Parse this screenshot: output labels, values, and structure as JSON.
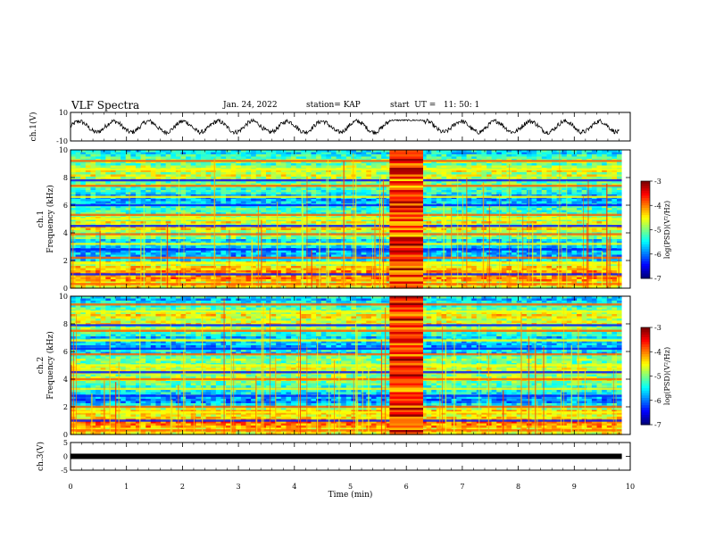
{
  "header": {
    "title": "VLF Spectra",
    "date": "Jan. 24, 2022",
    "station": "station= KAP",
    "start": "start  UT =   11: 50: 1"
  },
  "chart_data": [
    {
      "type": "line",
      "panel": "ch1-waveform",
      "ylabel": "ch.1(V)",
      "ylim": [
        -10,
        10
      ],
      "yticks": [
        "10",
        "-10"
      ],
      "xlim": [
        0,
        10
      ],
      "description_series": [
        {
          "name": "",
          "style": "black oscillating trace, approx. ±5 V, dense between 5.7 and 6.3 min"
        }
      ]
    },
    {
      "type": "heatmap",
      "panel": "ch1-spectrogram",
      "ylabel": "ch.1\nFrequency (kHz)",
      "ylim": [
        0,
        10
      ],
      "yticks": [
        "0",
        "2",
        "4",
        "6",
        "8",
        "10"
      ],
      "xlim": [
        0,
        10
      ],
      "colorbar": {
        "label": "log(PSD)(V²/Hz)",
        "range": [
          -7,
          -3
        ],
        "ticks": [
          "-3",
          "-4",
          "-5",
          "-6",
          "-7"
        ]
      },
      "bands_khz": [
        0.3,
        1.0,
        1.8,
        2.2,
        2.8,
        3.2,
        3.9,
        4.5,
        5.0,
        5.3,
        6.0,
        6.6,
        7.4,
        7.8,
        8.6,
        9.2
      ],
      "burst_min": [
        5.7,
        6.3
      ]
    },
    {
      "type": "heatmap",
      "panel": "ch2-spectrogram",
      "ylabel": "ch.2\nFrequency (kHz)",
      "ylim": [
        0,
        10
      ],
      "yticks": [
        "0",
        "2",
        "4",
        "6",
        "8",
        "10"
      ],
      "xlim": [
        0,
        10
      ],
      "colorbar": {
        "label": "log(PSD)(V²/Hz)",
        "range": [
          -7,
          -3
        ],
        "ticks": [
          "-3",
          "-4",
          "-5",
          "-6",
          "-7"
        ]
      },
      "bands_khz": [
        0.3,
        1.0,
        1.6,
        2.0,
        2.8,
        3.3,
        4.0,
        4.5,
        5.0,
        5.8,
        6.2,
        6.8,
        7.5,
        7.9,
        8.9,
        9.4
      ],
      "burst_min": [
        5.7,
        6.3
      ]
    },
    {
      "type": "line",
      "panel": "ch3-waveform",
      "ylabel": "ch.3(V)",
      "ylim": [
        -5,
        5
      ],
      "yticks": [
        "5",
        "0",
        "-5"
      ],
      "xlim": [
        0,
        10
      ],
      "level": 0
    }
  ],
  "xaxis": {
    "label": "Time (min)",
    "ticks": [
      "0",
      "1",
      "2",
      "3",
      "4",
      "5",
      "6",
      "7",
      "8",
      "9",
      "10"
    ]
  }
}
